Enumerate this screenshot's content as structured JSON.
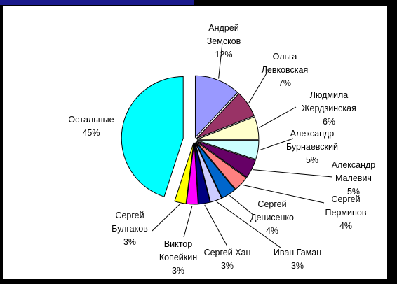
{
  "chart_data": {
    "type": "pie",
    "exploded": true,
    "title": "",
    "slices": [
      {
        "name": "Андрей Земсков",
        "label_lines": [
          "Андрей",
          "Земсков"
        ],
        "value": 12,
        "value_label": "12%",
        "color": "#9999ff"
      },
      {
        "name": "Ольга Левковская",
        "label_lines": [
          "Ольга",
          "Левковская"
        ],
        "value": 7,
        "value_label": "7%",
        "color": "#993366"
      },
      {
        "name": "Людмила Жердзинская",
        "label_lines": [
          "Людмила",
          "Жердзинская"
        ],
        "value": 6,
        "value_label": "6%",
        "color": "#ffffcc"
      },
      {
        "name": "Александр Бурнаевский",
        "label_lines": [
          "Александр",
          "Бурнаевский"
        ],
        "value": 5,
        "value_label": "5%",
        "color": "#ccffff"
      },
      {
        "name": "Александр Малевич",
        "label_lines": [
          "Александр",
          "Малевич"
        ],
        "value": 5,
        "value_label": "5%",
        "color": "#660066"
      },
      {
        "name": "Сергей Перминов",
        "label_lines": [
          "Сергей",
          "Перминов"
        ],
        "value": 4,
        "value_label": "4%",
        "color": "#ff8080"
      },
      {
        "name": "Сергей Денисенко",
        "label_lines": [
          "Сергей",
          "Денисенко"
        ],
        "value": 4,
        "value_label": "4%",
        "color": "#0066cc"
      },
      {
        "name": "Иван Гаман",
        "label_lines": [
          "Иван Гаман"
        ],
        "value": 3,
        "value_label": "3%",
        "color": "#ccccff"
      },
      {
        "name": "Сергей Хан",
        "label_lines": [
          "Сергей Хан"
        ],
        "value": 3,
        "value_label": "3%",
        "color": "#000080"
      },
      {
        "name": "Виктор Копейкин",
        "label_lines": [
          "Виктор",
          "Копейкин"
        ],
        "value": 3,
        "value_label": "3%",
        "color": "#ff00ff"
      },
      {
        "name": "Сергей Булгаков",
        "label_lines": [
          "Сергей",
          "Булгаков"
        ],
        "value": 3,
        "value_label": "3%",
        "color": "#ffff00"
      },
      {
        "name": "Остальные",
        "label_lines": [
          "Остальные"
        ],
        "value": 45,
        "value_label": "45%",
        "color": "#00ffff"
      }
    ]
  }
}
